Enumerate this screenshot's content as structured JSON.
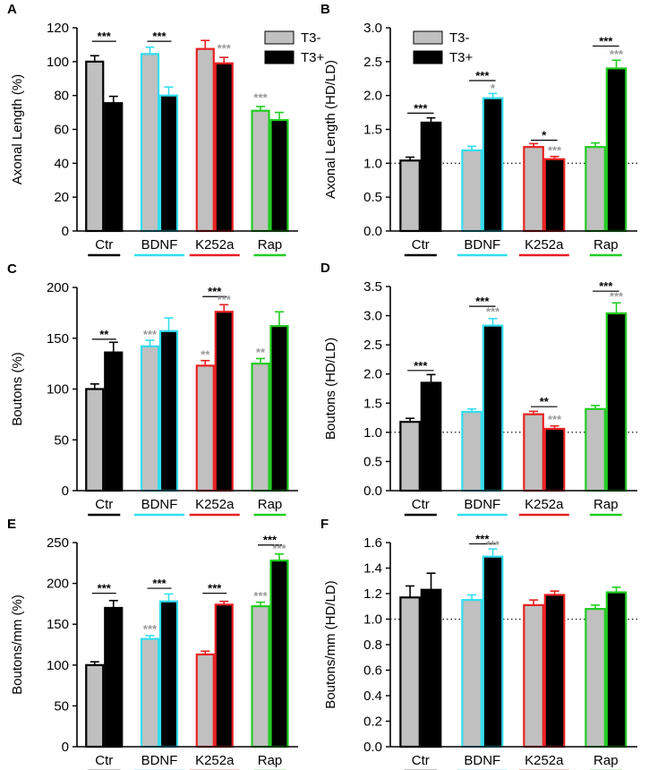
{
  "legend": {
    "t3_minus": "T3-",
    "t3_plus": "T3+"
  },
  "group_colors": {
    "Ctr": "#000000",
    "BDNF": "#33ddee",
    "K252a": "#e82020",
    "Rap": "#22cc22"
  },
  "series_fill": {
    "T3-": "#c0c0c0",
    "T3+": "#000000"
  },
  "chart_data": [
    {
      "panel": "A",
      "type": "bar",
      "ylabel": "Axonal Length (%)",
      "ylim": [
        0,
        120
      ],
      "yticks": [
        0,
        20,
        40,
        60,
        80,
        100,
        120
      ],
      "categories": [
        "Ctr",
        "BDNF",
        "K252a",
        "Rap"
      ],
      "series": [
        {
          "name": "T3-",
          "values": [
            100,
            104.5,
            107.5,
            71
          ],
          "errors": [
            3.5,
            4,
            5,
            2.5
          ]
        },
        {
          "name": "T3+",
          "values": [
            75.5,
            80,
            99,
            65.5
          ],
          "errors": [
            4,
            5,
            3.5,
            4.5
          ]
        }
      ],
      "reference_line": null,
      "legend": true,
      "annotations": [
        {
          "text": "***",
          "group": 0,
          "kind": "bracket",
          "value": 112
        },
        {
          "text": "***",
          "group": 1,
          "kind": "bracket",
          "value": 112
        },
        {
          "text": "***",
          "group": 2,
          "kind": "gray",
          "series": 1,
          "value": 105.5
        },
        {
          "text": "***",
          "group": 3,
          "kind": "gray",
          "series": 0,
          "value": 76.5
        }
      ]
    },
    {
      "panel": "B",
      "type": "bar",
      "ylabel": "Axonal Length (HD/LD)",
      "ylim": [
        0,
        3.0
      ],
      "yticks": [
        0.0,
        0.5,
        1.0,
        1.5,
        2.0,
        2.5,
        3.0
      ],
      "categories": [
        "Ctr",
        "BDNF",
        "K252a",
        "Rap"
      ],
      "series": [
        {
          "name": "T3-",
          "values": [
            1.04,
            1.19,
            1.24,
            1.24
          ],
          "errors": [
            0.05,
            0.06,
            0.05,
            0.06
          ]
        },
        {
          "name": "T3+",
          "values": [
            1.6,
            1.96,
            1.06,
            2.4
          ],
          "errors": [
            0.07,
            0.07,
            0.04,
            0.12
          ]
        }
      ],
      "reference_line": 1.0,
      "legend": true,
      "annotations": [
        {
          "text": "***",
          "group": 0,
          "kind": "bracket",
          "value": 1.74
        },
        {
          "text": "***",
          "group": 1,
          "kind": "bracket",
          "value": 2.22
        },
        {
          "text": "*",
          "group": 1,
          "kind": "gray",
          "series": 1,
          "value": 2.05
        },
        {
          "text": "*",
          "group": 2,
          "kind": "bracket",
          "value": 1.34
        },
        {
          "text": "***",
          "group": 2,
          "kind": "gray",
          "series": 1,
          "value": 1.13
        },
        {
          "text": "***",
          "group": 3,
          "kind": "bracket",
          "value": 2.73
        },
        {
          "text": "***",
          "group": 3,
          "kind": "gray",
          "series": 1,
          "value": 2.55
        }
      ]
    },
    {
      "panel": "C",
      "type": "bar",
      "ylabel": "Boutons (%)",
      "ylim": [
        0,
        200
      ],
      "yticks": [
        0,
        50,
        100,
        150,
        200
      ],
      "categories": [
        "Ctr",
        "BDNF",
        "K252a",
        "Rap"
      ],
      "series": [
        {
          "name": "T3-",
          "values": [
            100,
            142,
            123,
            125
          ],
          "errors": [
            5,
            6,
            5,
            5
          ]
        },
        {
          "name": "T3+",
          "values": [
            136,
            157,
            176,
            162
          ],
          "errors": [
            10,
            13,
            7,
            14
          ]
        }
      ],
      "reference_line": null,
      "legend": false,
      "annotations": [
        {
          "text": "**",
          "group": 0,
          "kind": "bracket",
          "value": 149
        },
        {
          "text": "***",
          "group": 1,
          "kind": "gray",
          "series": 0,
          "value": 150
        },
        {
          "text": "***",
          "group": 2,
          "kind": "bracket",
          "value": 191
        },
        {
          "text": "***",
          "group": 2,
          "kind": "gray",
          "series": 1,
          "value": 184
        },
        {
          "text": "**",
          "group": 2,
          "kind": "gray",
          "series": 0,
          "value": 130
        },
        {
          "text": "**",
          "group": 3,
          "kind": "gray",
          "series": 0,
          "value": 132
        }
      ]
    },
    {
      "panel": "D",
      "type": "bar",
      "ylabel": "Boutons (HD/LD)",
      "ylim": [
        0,
        3.5
      ],
      "yticks": [
        0.0,
        0.5,
        1.0,
        1.5,
        2.0,
        2.5,
        3.0,
        3.5
      ],
      "categories": [
        "Ctr",
        "BDNF",
        "K252a",
        "Rap"
      ],
      "series": [
        {
          "name": "T3-",
          "values": [
            1.18,
            1.35,
            1.31,
            1.4
          ],
          "errors": [
            0.06,
            0.05,
            0.05,
            0.06
          ]
        },
        {
          "name": "T3+",
          "values": [
            1.85,
            2.83,
            1.06,
            3.04
          ],
          "errors": [
            0.14,
            0.12,
            0.05,
            0.18
          ]
        }
      ],
      "reference_line": 1.0,
      "legend": false,
      "annotations": [
        {
          "text": "***",
          "group": 0,
          "kind": "bracket",
          "value": 2.06
        },
        {
          "text": "***",
          "group": 1,
          "kind": "bracket",
          "value": 3.16
        },
        {
          "text": "***",
          "group": 1,
          "kind": "gray",
          "series": 1,
          "value": 3.0
        },
        {
          "text": "**",
          "group": 2,
          "kind": "bracket",
          "value": 1.44
        },
        {
          "text": "***",
          "group": 2,
          "kind": "gray",
          "series": 1,
          "value": 1.15
        },
        {
          "text": "***",
          "group": 3,
          "kind": "bracket",
          "value": 3.42
        },
        {
          "text": "***",
          "group": 3,
          "kind": "gray",
          "series": 1,
          "value": 3.26
        }
      ]
    },
    {
      "panel": "E",
      "type": "bar",
      "ylabel": "Boutons/mm (%)",
      "ylim": [
        0,
        250
      ],
      "yticks": [
        0,
        50,
        100,
        150,
        200,
        250
      ],
      "categories": [
        "Ctr",
        "BDNF",
        "K252a",
        "Rap"
      ],
      "series": [
        {
          "name": "T3-",
          "values": [
            100,
            132,
            113,
            172
          ],
          "errors": [
            4,
            4,
            4,
            5
          ]
        },
        {
          "name": "T3+",
          "values": [
            170,
            178,
            174,
            228
          ],
          "errors": [
            9,
            9,
            4,
            8
          ]
        }
      ],
      "reference_line": null,
      "legend": false,
      "annotations": [
        {
          "text": "***",
          "group": 0,
          "kind": "bracket",
          "value": 188
        },
        {
          "text": "***",
          "group": 1,
          "kind": "bracket",
          "value": 194
        },
        {
          "text": "***",
          "group": 1,
          "kind": "gray",
          "series": 0,
          "value": 139
        },
        {
          "text": "***",
          "group": 2,
          "kind": "bracket",
          "value": 188
        },
        {
          "text": "***",
          "group": 3,
          "kind": "gray",
          "series": 0,
          "value": 180
        },
        {
          "text": "***",
          "group": 3,
          "kind": "bracket",
          "value": 247
        },
        {
          "text": "***",
          "group": 3,
          "kind": "gray",
          "series": 1,
          "value": 238
        }
      ]
    },
    {
      "panel": "F",
      "type": "bar",
      "ylabel": "Boutons/mm (HD/LD)",
      "ylim": [
        0,
        1.6
      ],
      "yticks": [
        0.0,
        0.2,
        0.4,
        0.6,
        0.8,
        1.0,
        1.2,
        1.4,
        1.6
      ],
      "categories": [
        "Ctr",
        "BDNF",
        "K252a",
        "Rap"
      ],
      "series": [
        {
          "name": "T3-",
          "values": [
            1.17,
            1.15,
            1.11,
            1.08
          ],
          "errors": [
            0.09,
            0.04,
            0.04,
            0.03
          ]
        },
        {
          "name": "T3+",
          "values": [
            1.23,
            1.49,
            1.19,
            1.21
          ],
          "errors": [
            0.13,
            0.06,
            0.03,
            0.04
          ]
        }
      ],
      "reference_line": 1.0,
      "legend": false,
      "annotations": [
        {
          "text": "***",
          "group": 1,
          "kind": "bracket",
          "value": 1.59
        },
        {
          "text": "***",
          "group": 1,
          "kind": "gray",
          "series": 1,
          "value": 1.55
        }
      ]
    }
  ]
}
